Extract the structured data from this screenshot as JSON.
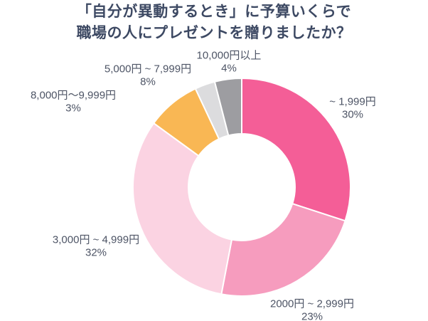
{
  "title": {
    "line1": "「自分が異動するとき」に予算いくらで",
    "line2": "職場の人にプレゼントを贈りましたか？"
  },
  "colors": {
    "background": "#FFFFFF",
    "title_text": "#3D4963",
    "label_text": "#4D5465",
    "slice_separator": "#FFFFFF"
  },
  "chart_data": {
    "type": "pie",
    "subtype": "donut",
    "title": "「自分が異動するとき」に予算いくらで職場の人にプレゼントを贈りましたか？",
    "start_angle_deg": 0,
    "direction": "clockwise",
    "inner_radius_ratio": 0.49,
    "legend": "none",
    "slices": [
      {
        "label": "~ 1,999円",
        "value": 30,
        "pct": "30%",
        "color": "#F45E97"
      },
      {
        "label": "2000円 ~ 2,999円",
        "value": 23,
        "pct": "23%",
        "color": "#F69CBE"
      },
      {
        "label": "3,000円 ~ 4,999円",
        "value": 32,
        "pct": "32%",
        "color": "#FBD3E2"
      },
      {
        "label": "5,000円 ~ 7,999円",
        "value": 8,
        "pct": "8%",
        "color": "#F9B754"
      },
      {
        "label": "8,000円～9,999円",
        "value": 3,
        "pct": "3%",
        "color": "#DCDCDE"
      },
      {
        "label": "10,000円以上",
        "value": 4,
        "pct": "4%",
        "color": "#9D9DA1"
      }
    ]
  }
}
